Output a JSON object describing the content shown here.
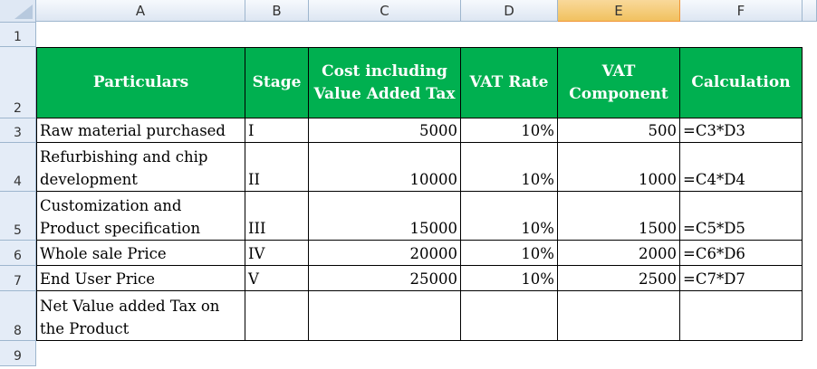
{
  "columns": [
    "A",
    "B",
    "C",
    "D",
    "E",
    "F"
  ],
  "rows": [
    "1",
    "2",
    "3",
    "4",
    "5",
    "6",
    "7",
    "8",
    "9"
  ],
  "selected_column": "E",
  "header_color": "#00b050",
  "headers": [
    "Particulars",
    "Stage",
    "Cost including Value Added Tax",
    "VAT Rate",
    "VAT Component",
    "Calculation"
  ],
  "data": [
    [
      "Raw material purchased",
      "I",
      "5000",
      "10%",
      "500",
      "=C3*D3"
    ],
    [
      "Refurbishing and chip development",
      "II",
      "10000",
      "10%",
      "1000",
      "=C4*D4"
    ],
    [
      "Customization and Product specification",
      "III",
      "15000",
      "10%",
      "1500",
      "=C5*D5"
    ],
    [
      "Whole sale Price",
      "IV",
      "20000",
      "10%",
      "2000",
      "=C6*D6"
    ],
    [
      "End User Price",
      "V",
      "25000",
      "10%",
      "2500",
      "=C7*D7"
    ],
    [
      "Net Value added Tax on the Product",
      "",
      "",
      "",
      "",
      ""
    ]
  ]
}
